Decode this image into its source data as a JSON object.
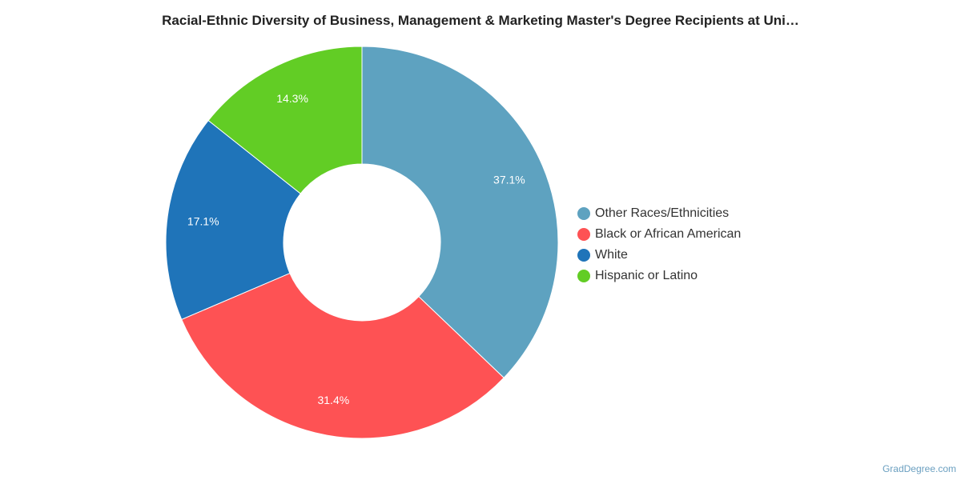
{
  "chart_data": {
    "type": "pie",
    "title": "Racial-Ethnic Diversity of Business, Management & Marketing Master's Degree Recipients at Uni…",
    "donut": true,
    "legend_position": "right",
    "slices": [
      {
        "name": "Other Races/Ethnicities",
        "value": 37.1,
        "label": "37.1%",
        "color": "#5ea2c0"
      },
      {
        "name": "Black or African American",
        "value": 31.4,
        "label": "31.4%",
        "color": "#fe5254"
      },
      {
        "name": "White",
        "value": 17.1,
        "label": "17.1%",
        "color": "#1f74b9"
      },
      {
        "name": "Hispanic or Latino",
        "value": 14.3,
        "label": "14.3%",
        "color": "#62cd25"
      }
    ]
  },
  "credit": "GradDegree.com"
}
